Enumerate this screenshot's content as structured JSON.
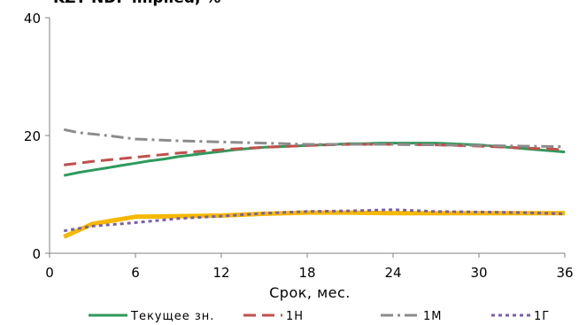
{
  "chart_data": {
    "type": "line",
    "title": "KZT NDF implied, %",
    "xlabel": "Срок, мес.",
    "ylabel": "",
    "xlim": [
      0,
      36
    ],
    "ylim": [
      0,
      40
    ],
    "x_ticks": [
      "0",
      "6",
      "12",
      "18",
      "24",
      "30",
      "36"
    ],
    "y_ticks": [
      "0",
      "20",
      "40"
    ],
    "grid": false,
    "legend_position": "bottom",
    "series": [
      {
        "name": "Текущее зн.",
        "color": "#2e9a5c",
        "dash": "solid",
        "x": [
          1,
          2,
          3,
          4,
          5,
          6,
          7,
          8,
          9,
          10,
          11,
          12,
          13,
          14,
          15,
          16,
          17,
          18,
          19,
          20,
          21,
          22,
          23,
          24,
          25,
          26,
          27,
          28,
          29,
          30,
          31,
          32,
          33,
          34,
          35,
          36
        ],
        "y": [
          13.2,
          13.7,
          14.1,
          14.5,
          14.9,
          15.3,
          15.7,
          16.0,
          16.4,
          16.7,
          17.0,
          17.3,
          17.6,
          17.8,
          18.0,
          18.1,
          18.2,
          18.3,
          18.4,
          18.5,
          18.6,
          18.6,
          18.7,
          18.7,
          18.7,
          18.7,
          18.7,
          18.6,
          18.5,
          18.4,
          18.2,
          18.0,
          17.8,
          17.6,
          17.4,
          17.2
        ]
      },
      {
        "name": "1Н",
        "color": "#c0504d",
        "dash": "long-dash",
        "x": [
          1,
          3,
          6,
          9,
          12,
          15,
          18,
          21,
          24,
          27,
          30,
          33,
          36
        ],
        "y": [
          15.0,
          15.6,
          16.3,
          17.0,
          17.6,
          18.0,
          18.3,
          18.5,
          18.5,
          18.4,
          18.2,
          17.9,
          17.6
        ]
      },
      {
        "name": "1М",
        "color": "#8c8c8c",
        "dash": "dash-dot",
        "x": [
          1,
          2,
          4,
          6,
          9,
          12,
          15,
          18,
          21,
          24,
          27,
          30,
          33,
          36
        ],
        "y": [
          21.0,
          20.5,
          20.0,
          19.4,
          19.1,
          18.9,
          18.7,
          18.5,
          18.5,
          18.5,
          18.4,
          18.3,
          18.2,
          18.1
        ]
      },
      {
        "name": "1Г",
        "color": "#7a60a8",
        "dash": "dotted",
        "x": [
          1,
          3,
          6,
          9,
          12,
          15,
          18,
          21,
          24,
          27,
          30,
          33,
          36
        ],
        "y": [
          3.8,
          4.6,
          5.2,
          5.9,
          6.3,
          6.8,
          7.1,
          7.2,
          7.4,
          7.1,
          7.0,
          6.9,
          6.7
        ]
      },
      {
        "name": "",
        "color": "#f5b800",
        "dash": "solid",
        "x": [
          1,
          3,
          6,
          9,
          12,
          15,
          18,
          21,
          24,
          27,
          30,
          33,
          36
        ],
        "y": [
          2.8,
          5.0,
          6.2,
          6.3,
          6.4,
          6.7,
          6.9,
          6.9,
          6.8,
          6.8,
          6.8,
          6.8,
          6.8
        ]
      }
    ]
  }
}
